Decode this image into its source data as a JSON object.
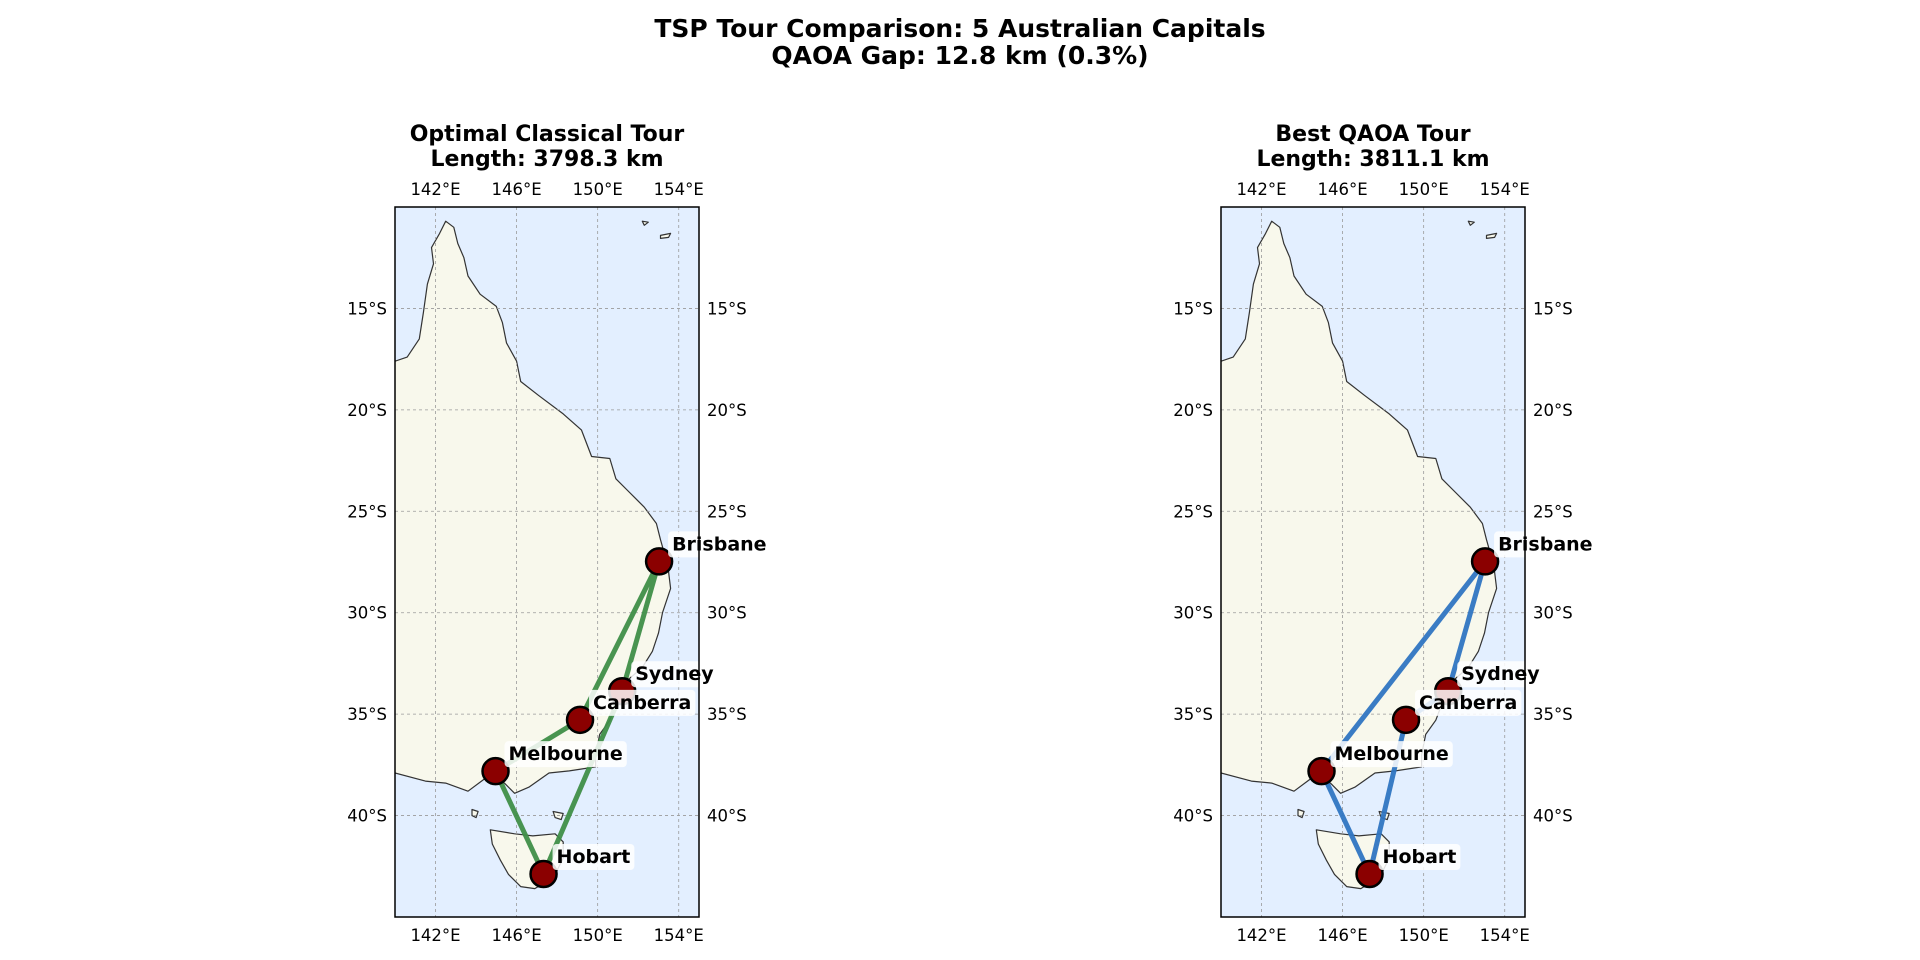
{
  "figure": {
    "title_line1": "TSP Tour Comparison: 5 Australian Capitals",
    "title_line2": "QAOA Gap: 12.8 km (0.3%)"
  },
  "map_extent": {
    "lon": [
      140,
      155
    ],
    "lat": [
      -10,
      -45
    ]
  },
  "gridlines": {
    "lon": [
      142,
      146,
      150,
      154
    ],
    "lat": [
      -15,
      -20,
      -25,
      -30,
      -35,
      -40
    ],
    "lon_labels": [
      "142°E",
      "146°E",
      "150°E",
      "154°E"
    ],
    "lat_labels": [
      "15°S",
      "20°S",
      "25°S",
      "30°S",
      "35°S",
      "40°S"
    ]
  },
  "colors": {
    "classical_route": "#3f8e48",
    "qaoa_route": "#2f75c2",
    "city_marker": "#8b0000",
    "ocean": "#e3efff",
    "land": "#f8f8ec"
  },
  "cities": [
    {
      "name": "Brisbane",
      "lon": 153.03,
      "lat": -27.47
    },
    {
      "name": "Sydney",
      "lon": 151.21,
      "lat": -33.87
    },
    {
      "name": "Canberra",
      "lon": 149.13,
      "lat": -35.28
    },
    {
      "name": "Melbourne",
      "lon": 144.96,
      "lat": -37.81
    },
    {
      "name": "Hobart",
      "lon": 147.33,
      "lat": -42.88
    }
  ],
  "panels": [
    {
      "id": "classical",
      "title_line1": "Optimal Classical Tour",
      "title_line2": "Length: 3798.3 km",
      "route_color": "#3f8e48",
      "tour": [
        "Brisbane",
        "Sydney",
        "Hobart",
        "Melbourne",
        "Canberra",
        "Brisbane"
      ]
    },
    {
      "id": "qaoa",
      "title_line1": "Best QAOA Tour",
      "title_line2": "Length: 3811.1 km",
      "route_color": "#2f75c2",
      "tour": [
        "Brisbane",
        "Sydney",
        "Canberra",
        "Hobart",
        "Melbourne",
        "Brisbane"
      ]
    }
  ],
  "mainland_coast": [
    [
      140,
      -17.6
    ],
    [
      140.6,
      -17.4
    ],
    [
      141.2,
      -16.5
    ],
    [
      141.4,
      -15.2
    ],
    [
      141.6,
      -13.8
    ],
    [
      141.9,
      -12.8
    ],
    [
      141.8,
      -12.0
    ],
    [
      142.2,
      -11.3
    ],
    [
      142.5,
      -10.7
    ],
    [
      142.9,
      -11.0
    ],
    [
      143.1,
      -11.8
    ],
    [
      143.4,
      -12.5
    ],
    [
      143.6,
      -13.4
    ],
    [
      144.2,
      -14.3
    ],
    [
      145.0,
      -14.9
    ],
    [
      145.3,
      -15.7
    ],
    [
      145.5,
      -16.7
    ],
    [
      146.0,
      -17.6
    ],
    [
      146.2,
      -18.6
    ],
    [
      147.1,
      -19.3
    ],
    [
      148.3,
      -20.2
    ],
    [
      149.2,
      -21.0
    ],
    [
      149.7,
      -22.3
    ],
    [
      150.6,
      -22.4
    ],
    [
      150.9,
      -23.4
    ],
    [
      151.5,
      -24.0
    ],
    [
      152.3,
      -24.8
    ],
    [
      152.9,
      -25.6
    ],
    [
      153.1,
      -26.4
    ],
    [
      153.3,
      -27.1
    ],
    [
      153.5,
      -28.0
    ],
    [
      153.6,
      -28.8
    ],
    [
      153.2,
      -30.0
    ],
    [
      153.0,
      -31.0
    ],
    [
      152.7,
      -31.9
    ],
    [
      152.2,
      -32.7
    ],
    [
      151.5,
      -33.3
    ],
    [
      151.2,
      -33.9
    ],
    [
      150.9,
      -34.5
    ],
    [
      150.6,
      -35.3
    ],
    [
      150.1,
      -36.0
    ],
    [
      149.9,
      -37.0
    ],
    [
      149.9,
      -37.6
    ],
    [
      148.6,
      -37.8
    ],
    [
      147.6,
      -37.9
    ],
    [
      146.6,
      -38.6
    ],
    [
      145.9,
      -38.9
    ],
    [
      145.4,
      -38.4
    ],
    [
      144.9,
      -38.3
    ],
    [
      144.4,
      -38.2
    ],
    [
      143.6,
      -38.8
    ],
    [
      142.5,
      -38.4
    ],
    [
      141.5,
      -38.3
    ],
    [
      140,
      -37.9
    ],
    [
      140,
      -10
    ],
    [
      155,
      -10
    ],
    [
      155,
      -45
    ],
    [
      140,
      -45
    ]
  ],
  "tasmania_coast": [
    [
      144.7,
      -40.7
    ],
    [
      145.9,
      -40.9
    ],
    [
      146.8,
      -41.0
    ],
    [
      147.9,
      -40.9
    ],
    [
      148.3,
      -41.3
    ],
    [
      148.3,
      -42.1
    ],
    [
      147.9,
      -42.9
    ],
    [
      147.4,
      -43.3
    ],
    [
      146.9,
      -43.6
    ],
    [
      146.2,
      -43.5
    ],
    [
      145.6,
      -42.9
    ],
    [
      145.2,
      -42.2
    ],
    [
      144.8,
      -41.4
    ]
  ],
  "islands": [
    [
      [
        143.8,
        -39.7
      ],
      [
        144.1,
        -39.8
      ],
      [
        144.0,
        -40.1
      ],
      [
        143.8,
        -40.0
      ]
    ],
    [
      [
        147.8,
        -39.8
      ],
      [
        148.3,
        -39.9
      ],
      [
        148.2,
        -40.2
      ],
      [
        147.9,
        -40.1
      ]
    ],
    [
      [
        153.1,
        -11.4
      ],
      [
        153.6,
        -11.3
      ],
      [
        153.5,
        -11.5
      ],
      [
        153.1,
        -11.55
      ]
    ],
    [
      [
        152.2,
        -10.7
      ],
      [
        152.5,
        -10.75
      ],
      [
        152.3,
        -10.9
      ]
    ]
  ]
}
